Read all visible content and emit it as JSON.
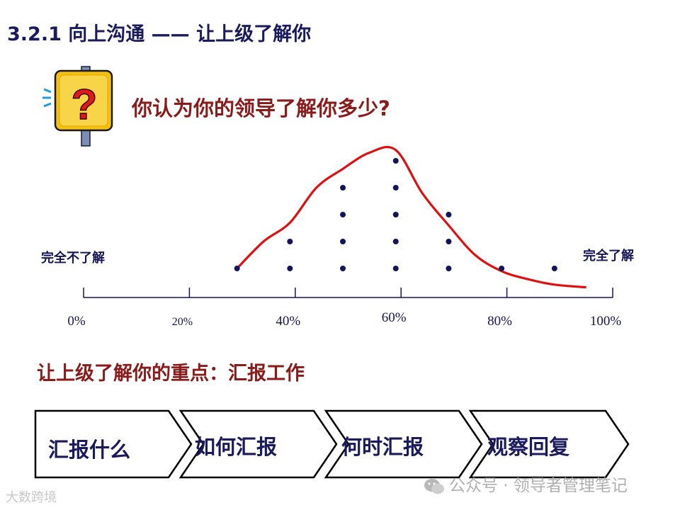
{
  "title": "3.2.1 向上沟通 —— 让上级了解你",
  "question": "你认为你的领导了解你多少?",
  "icon_name": "question-sign-icon",
  "chart_data": {
    "type": "scatter",
    "x_ticks": [
      "0%",
      "20%",
      "40%",
      "60%",
      "80%",
      "100%"
    ],
    "x_range": [
      0,
      100
    ],
    "y_range": [
      0,
      6
    ],
    "left_label": "完全不了解",
    "right_label": "完全了解",
    "dots": [
      {
        "x": 29,
        "count": 1
      },
      {
        "x": 39,
        "count": 2
      },
      {
        "x": 49,
        "count": 4
      },
      {
        "x": 59,
        "count": 5
      },
      {
        "x": 69,
        "count": 3
      },
      {
        "x": 79,
        "count": 1
      },
      {
        "x": 89,
        "count": 1
      }
    ],
    "curve": [
      [
        29,
        1
      ],
      [
        34,
        2
      ],
      [
        39,
        2.7
      ],
      [
        44,
        4
      ],
      [
        49,
        4.7
      ],
      [
        54,
        5.3
      ],
      [
        59,
        5.4
      ],
      [
        64,
        3.8
      ],
      [
        69,
        2.6
      ],
      [
        74,
        1.5
      ],
      [
        79,
        0.9
      ],
      [
        84,
        0.6
      ],
      [
        89,
        0.4
      ],
      [
        95,
        0.3
      ]
    ],
    "colors": {
      "curve": "#e01010",
      "dots": "#14145a",
      "axis": "#14145a"
    }
  },
  "key_point": "让上级了解你的重点：汇报工作",
  "steps": [
    "汇报什么",
    "如何汇报",
    "何时汇报",
    "观察回复"
  ],
  "watermark_left": "大数跨境",
  "watermark_right": "公众号 · 领导者管理笔记"
}
